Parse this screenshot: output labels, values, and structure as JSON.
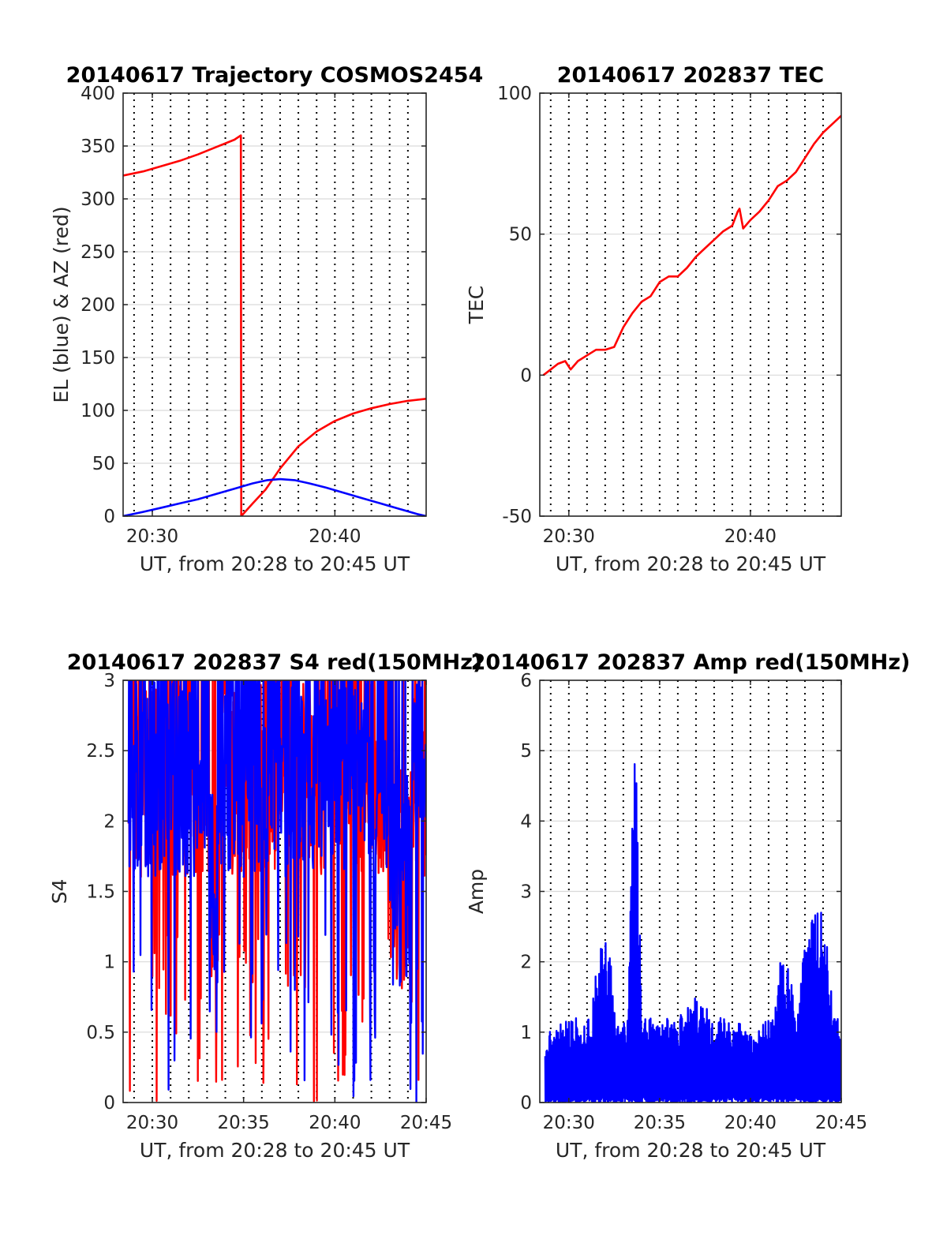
{
  "colors": {
    "red": "#ff0000",
    "blue": "#0000ff",
    "grid": "#d9d9d9",
    "axis": "#262626"
  },
  "chart_data": [
    {
      "type": "line",
      "title": "20140617 Trajectory COSMOS2454",
      "xlabel": "UT, from 20:28 to 20:45 UT",
      "ylabel": "EL (blue) & AZ (red)",
      "xlim": [
        28.4,
        45.0
      ],
      "ylim": [
        0,
        400
      ],
      "xticks": [
        30,
        40
      ],
      "xtick_labels": [
        "20:30",
        "20:40"
      ],
      "yticks": [
        0,
        50,
        100,
        150,
        200,
        250,
        300,
        350,
        400
      ],
      "ytick_labels": [
        "0",
        "50",
        "100",
        "150",
        "200",
        "250",
        "300",
        "350",
        "400"
      ],
      "grid": true,
      "series": [
        {
          "color": "red",
          "x": [
            28.4,
            29.5,
            30.5,
            31.5,
            32.5,
            33.5,
            34.5,
            34.85,
            34.87,
            35.5,
            36.2,
            37.0,
            38.0,
            39.0,
            40.0,
            41.0,
            42.0,
            43.0,
            44.0,
            45.0
          ],
          "y": [
            322,
            326,
            331,
            336,
            342,
            349,
            356,
            360,
            0,
            12,
            25,
            45,
            66,
            80,
            90,
            97,
            102,
            106,
            109,
            111
          ]
        },
        {
          "color": "blue",
          "x": [
            28.4,
            29.5,
            30.5,
            31.5,
            32.5,
            33.5,
            34.5,
            35.5,
            36.3,
            37.0,
            37.8,
            38.6,
            39.5,
            40.5,
            41.5,
            42.5,
            43.5,
            44.5,
            45.0
          ],
          "y": [
            0,
            4,
            8,
            12,
            16,
            21,
            26,
            31,
            34,
            35,
            34,
            31,
            27,
            22,
            17,
            12,
            7,
            2,
            0
          ]
        }
      ]
    },
    {
      "type": "line",
      "title": "20140617 202837 TEC",
      "xlabel": "UT, from 20:28 to 20:45 UT",
      "ylabel": "TEC",
      "xlim": [
        28.4,
        45.0
      ],
      "ylim": [
        -50,
        100
      ],
      "xticks": [
        30,
        40
      ],
      "xtick_labels": [
        "20:30",
        "20:40"
      ],
      "yticks": [
        -50,
        0,
        50,
        100
      ],
      "ytick_labels": [
        "-50",
        "0",
        "50",
        "100"
      ],
      "grid": true,
      "series": [
        {
          "color": "red",
          "x": [
            28.6,
            29.0,
            29.4,
            29.8,
            30.1,
            30.5,
            31.0,
            31.5,
            32.0,
            32.5,
            33.0,
            33.5,
            34.0,
            34.5,
            35.0,
            35.5,
            36.0,
            36.5,
            37.0,
            37.5,
            38.0,
            38.5,
            39.0,
            39.3,
            39.4,
            39.6,
            40.0,
            40.5,
            41.0,
            41.5,
            42.0,
            42.5,
            43.0,
            43.5,
            44.0,
            44.5,
            45.0
          ],
          "y": [
            0,
            2,
            4,
            5,
            2,
            5,
            7,
            9,
            9,
            10,
            17,
            22,
            26,
            28,
            33,
            35,
            35,
            38,
            42,
            45,
            48,
            51,
            53,
            58,
            59,
            52,
            55,
            58,
            62,
            67,
            69,
            72,
            77,
            82,
            86,
            89,
            92
          ]
        }
      ]
    },
    {
      "type": "line",
      "title": "20140617 202837 S4 red(150MHz)",
      "xlabel": "UT, from 20:28 to 20:45 UT",
      "ylabel": "S4",
      "xlim": [
        28.4,
        45.0
      ],
      "ylim": [
        0,
        3
      ],
      "xticks": [
        30,
        35,
        40,
        45
      ],
      "xtick_labels": [
        "20:30",
        "20:35",
        "20:40",
        "20:45"
      ],
      "yticks": [
        0,
        0.5,
        1,
        1.5,
        2,
        2.5,
        3
      ],
      "ytick_labels": [
        "0",
        "0.5",
        "1",
        "1.5",
        "2",
        "2.5",
        "3"
      ],
      "grid": true,
      "series": [
        {
          "color": "red",
          "noise": "s4",
          "seed": 7
        },
        {
          "color": "blue",
          "noise": "s4",
          "seed": 13
        }
      ]
    },
    {
      "type": "line",
      "title": "20140617 202837 Amp red(150MHz)",
      "xlabel": "UT, from 20:28 to 20:45 UT",
      "ylabel": "Amp",
      "xlim": [
        28.4,
        45.0
      ],
      "ylim": [
        0,
        6
      ],
      "xticks": [
        30,
        35,
        40,
        45
      ],
      "xtick_labels": [
        "20:30",
        "20:35",
        "20:40",
        "20:45"
      ],
      "yticks": [
        0,
        1,
        2,
        3,
        4,
        5,
        6
      ],
      "ytick_labels": [
        "0",
        "1",
        "2",
        "3",
        "4",
        "5",
        "6"
      ],
      "grid": true,
      "series": [
        {
          "color": "blue",
          "noise": "amp",
          "seed": 21,
          "envelope_x": [
            28.7,
            30.0,
            31.2,
            31.5,
            32.0,
            32.3,
            32.6,
            33.2,
            33.5,
            33.65,
            33.8,
            34.0,
            35.0,
            36.0,
            37.0,
            38.0,
            39.0,
            39.8,
            40.3,
            41.3,
            41.6,
            42.2,
            42.6,
            43.0,
            43.5,
            44.0,
            44.7,
            45.0
          ],
          "envelope_y": [
            1.0,
            1.2,
            1.2,
            1.9,
            2.6,
            2.0,
            1.1,
            1.2,
            4.0,
            5.5,
            4.0,
            1.2,
            1.2,
            1.2,
            1.6,
            1.2,
            1.3,
            1.0,
            1.0,
            1.3,
            2.0,
            1.9,
            1.2,
            2.5,
            2.7,
            2.7,
            1.3,
            1.0
          ]
        }
      ]
    }
  ]
}
